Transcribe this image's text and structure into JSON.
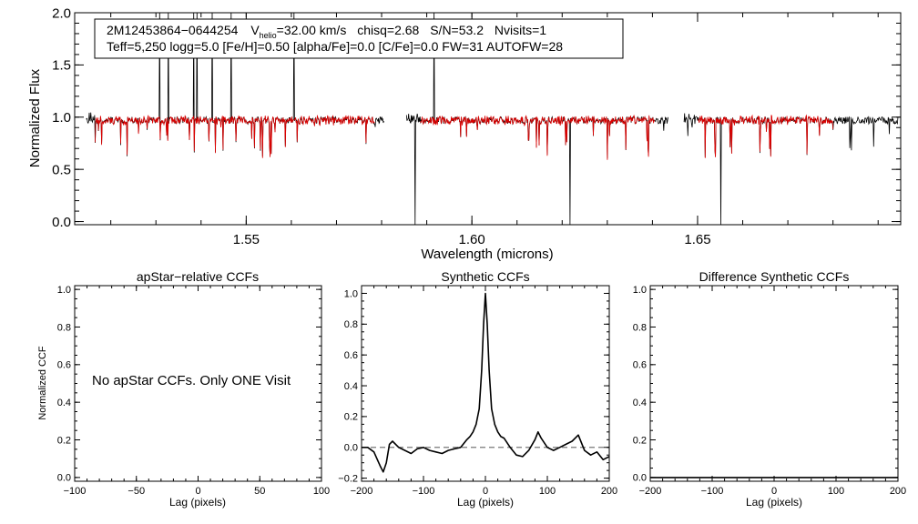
{
  "chart_data": [
    {
      "type": "line",
      "id": "spectrum",
      "ylabel": "Normalized Flux",
      "xlabel": "Wavelength (microns)",
      "xlim": [
        1.512,
        1.695
      ],
      "ylim": [
        -0.03,
        2.0
      ],
      "xticks": [
        1.55,
        1.6,
        1.65
      ],
      "xtick_labels": [
        "1.55",
        "1.60",
        "1.65"
      ],
      "yticks": [
        0.0,
        0.5,
        1.0,
        1.5,
        2.0
      ],
      "ytick_labels": [
        "0.0",
        "0.5",
        "1.0",
        "1.5",
        "2.0"
      ],
      "chips": [
        [
          1.5145,
          1.5805
        ],
        [
          1.5855,
          1.6435
        ],
        [
          1.647,
          1.6945
        ]
      ],
      "model_chips": [
        [
          1.5165,
          1.5785
        ],
        [
          1.5885,
          1.6405
        ],
        [
          1.65,
          1.68
        ]
      ],
      "series": [
        {
          "name": "observed",
          "color": "#000000"
        },
        {
          "name": "synthetic fit",
          "color": "#dd0000"
        }
      ],
      "annotation": {
        "object": "2M12453864−0644254",
        "v_symbol": "V",
        "v_sub": "helio",
        "v_value": "=32.00 km/s",
        "chisq": "chisq=2.68",
        "snr": "S/N=53.2",
        "nvisits": "Nvisits=1",
        "params": "Teff=5,250 logg=5.0 [Fe/H]=0.50 [alpha/Fe]=0.0 [C/Fe]=0.0 FW=31 AUTOFW=28"
      }
    },
    {
      "type": "line",
      "id": "apstar_ccf",
      "title": "apStar−relative CCFs",
      "ylabel": "Normalized CCF",
      "xlabel": "Lag (pixels)",
      "xlim": [
        -100,
        100
      ],
      "ylim": [
        -0.02,
        1.02
      ],
      "xticks": [
        -100,
        -50,
        0,
        50,
        100
      ],
      "xtick_labels": [
        "−100",
        "−50",
        "0",
        "50",
        "100"
      ],
      "yticks": [
        0.0,
        0.2,
        0.4,
        0.6,
        0.8,
        1.0
      ],
      "ytick_labels": [
        "0.0",
        "0.2",
        "0.4",
        "0.6",
        "0.8",
        "1.0"
      ],
      "message": "No apStar CCFs.  Only ONE Visit",
      "series": []
    },
    {
      "type": "line",
      "id": "synthetic_ccf",
      "title": "Synthetic CCFs",
      "xlabel": "Lag (pixels)",
      "xlim": [
        -200,
        200
      ],
      "ylim": [
        -0.22,
        1.05
      ],
      "xticks": [
        -200,
        -100,
        0,
        100,
        200
      ],
      "xtick_labels": [
        "−200",
        "−100",
        "0",
        "100",
        "200"
      ],
      "yticks": [
        -0.2,
        0.0,
        0.2,
        0.4,
        0.6,
        0.8,
        1.0
      ],
      "ytick_labels": [
        "−0.2",
        "0.0",
        "0.2",
        "0.4",
        "0.6",
        "0.8",
        "1.0"
      ],
      "reference_line": 0.0,
      "series": [
        {
          "name": "ccf",
          "color": "#000000",
          "x": [
            -200,
            -190,
            -180,
            -170,
            -165,
            -160,
            -155,
            -150,
            -140,
            -130,
            -120,
            -110,
            -100,
            -90,
            -80,
            -70,
            -60,
            -50,
            -40,
            -30,
            -25,
            -20,
            -15,
            -10,
            -6,
            -3,
            0,
            3,
            6,
            10,
            15,
            20,
            25,
            30,
            40,
            50,
            60,
            70,
            80,
            85,
            90,
            100,
            110,
            120,
            130,
            140,
            150,
            160,
            170,
            180,
            190,
            200
          ],
          "y": [
            0.0,
            0.0,
            -0.03,
            -0.12,
            -0.16,
            -0.1,
            0.02,
            0.04,
            0.0,
            -0.02,
            -0.04,
            -0.01,
            0.0,
            -0.02,
            -0.03,
            -0.04,
            -0.02,
            -0.01,
            0.0,
            0.05,
            0.07,
            0.1,
            0.15,
            0.25,
            0.5,
            0.8,
            1.0,
            0.8,
            0.5,
            0.25,
            0.15,
            0.1,
            0.07,
            0.06,
            0.0,
            -0.05,
            -0.06,
            -0.02,
            0.05,
            0.1,
            0.06,
            0.0,
            -0.02,
            0.0,
            0.02,
            0.04,
            0.08,
            -0.02,
            -0.05,
            -0.03,
            -0.08,
            -0.06
          ]
        }
      ]
    },
    {
      "type": "line",
      "id": "difference_ccf",
      "title": "Difference Synthetic CCFs",
      "xlabel": "Lag (pixels)",
      "xlim": [
        -200,
        200
      ],
      "ylim": [
        -0.02,
        1.02
      ],
      "xticks": [
        -200,
        -100,
        0,
        100,
        200
      ],
      "xtick_labels": [
        "−200",
        "−100",
        "0",
        "100",
        "200"
      ],
      "yticks": [
        0.0,
        0.2,
        0.4,
        0.6,
        0.8,
        1.0
      ],
      "ytick_labels": [
        "0.0",
        "0.2",
        "0.4",
        "0.6",
        "0.8",
        "1.0"
      ],
      "series": [
        {
          "name": "difference",
          "color": "#000000",
          "x": [
            -200,
            200
          ],
          "y": [
            0.0,
            0.0
          ]
        }
      ]
    }
  ]
}
